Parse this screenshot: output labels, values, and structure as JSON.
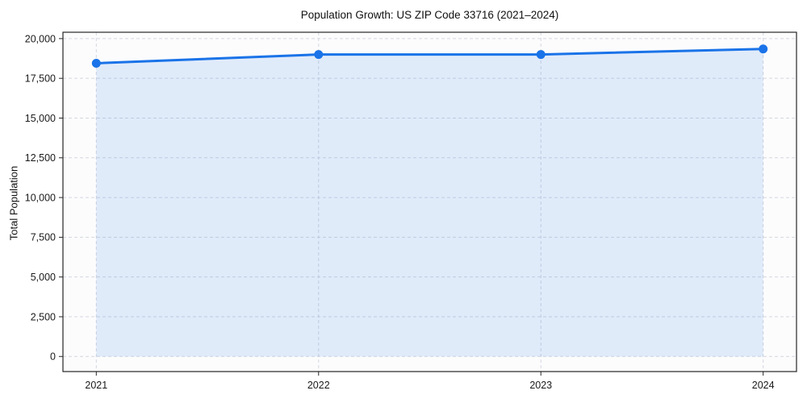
{
  "chart_data": {
    "type": "area",
    "title": "Population Growth: US ZIP Code 33716 (2021–2024)",
    "xlabel": "",
    "ylabel": "Total Population",
    "series_name": "Total Population",
    "x": [
      2021,
      2022,
      2023,
      2024
    ],
    "values": [
      18450,
      19000,
      19000,
      19350
    ],
    "x_tick_labels": [
      "2021",
      "2022",
      "2023",
      "2024"
    ],
    "yticks": [
      0,
      2500,
      5000,
      7500,
      10000,
      12500,
      15000,
      17500,
      20000
    ],
    "xlim": [
      2020.85,
      2024.15
    ],
    "ylim": [
      -950,
      20400
    ],
    "grid": true,
    "grid_style": "dashed",
    "legend": "none",
    "marker": "circle",
    "fill_to_value": 0,
    "colors": {
      "line": "#1a73e8",
      "marker": "#1a73e8",
      "fill": "#1a73e8",
      "fill_opacity": 0.12,
      "grid": "#d4d7de",
      "axis": "#262626",
      "tick_text": "#1a1a1a",
      "plot_background": "#fcfcfd",
      "figure_background": "#ffffff"
    }
  }
}
